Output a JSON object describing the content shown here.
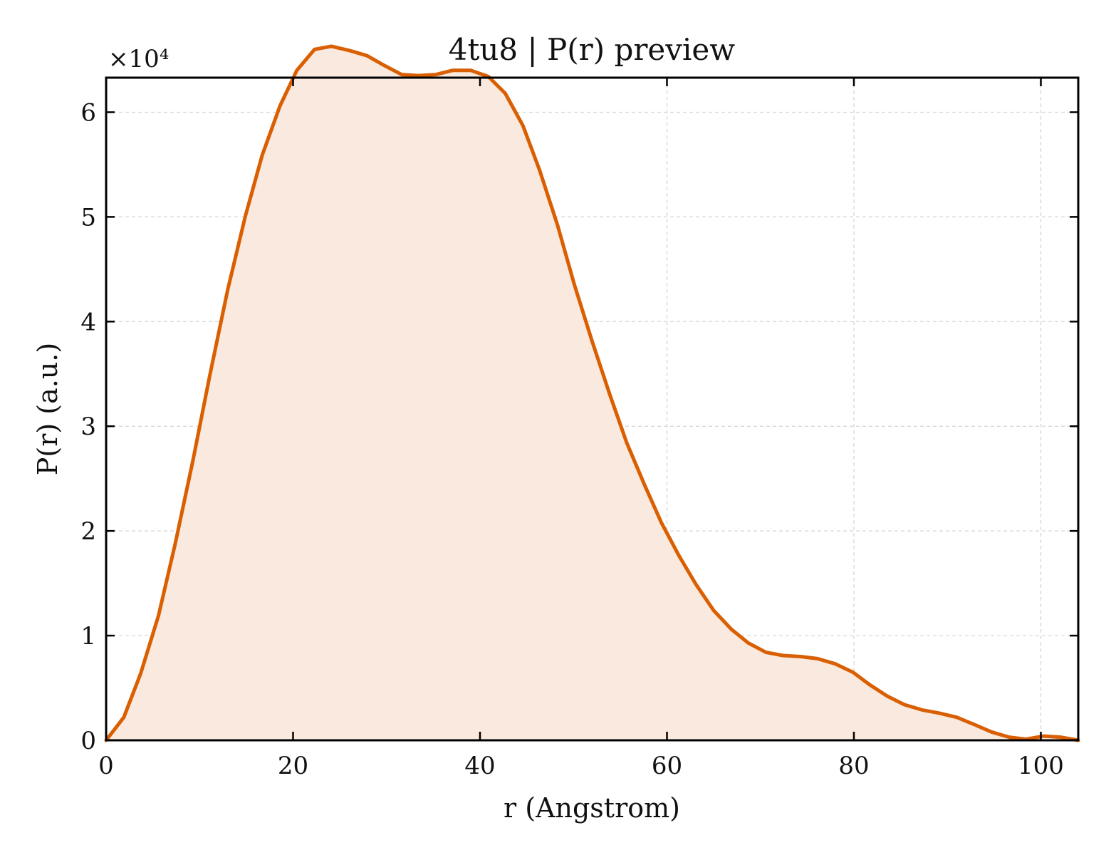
{
  "chart_data": {
    "type": "area",
    "title": "4tu8 | P(r) preview",
    "xlabel": "r (Angstrom)",
    "ylabel": "P(r) (a.u.)",
    "y_multiplier": "×10⁴",
    "xlim": [
      0,
      104
    ],
    "ylim": [
      0,
      63300
    ],
    "xticks": [
      0,
      20,
      40,
      60,
      80,
      100
    ],
    "yticks": [
      0,
      10000,
      20000,
      30000,
      40000,
      50000,
      60000
    ],
    "xtick_labels": [
      "0",
      "20",
      "40",
      "60",
      "80",
      "100"
    ],
    "ytick_labels": [
      "0",
      "1",
      "2",
      "3",
      "4",
      "5",
      "6"
    ],
    "grid": true,
    "series": [
      {
        "line_color": "#d95f02",
        "fill_color": "#fae9df",
        "x": [
          0,
          1.9,
          3.7,
          5.6,
          7.4,
          9.3,
          11.1,
          13.0,
          14.9,
          16.7,
          18.6,
          20.4,
          22.3,
          24.1,
          26.0,
          27.9,
          29.7,
          31.6,
          33.4,
          35.3,
          37.1,
          39.0,
          40.9,
          42.7,
          44.6,
          46.4,
          48.3,
          50.1,
          52.0,
          53.9,
          55.7,
          57.6,
          59.4,
          61.3,
          63.1,
          65.0,
          66.9,
          68.7,
          70.6,
          72.4,
          74.3,
          76.1,
          78.0,
          79.9,
          81.7,
          83.6,
          85.4,
          87.3,
          89.1,
          91.0,
          92.9,
          94.7,
          96.6,
          98.4,
          100.3,
          102.1,
          104.0
        ],
        "y": [
          0,
          2200,
          6400,
          11900,
          18800,
          26800,
          34900,
          43000,
          50100,
          55900,
          60600,
          64000,
          66000,
          66300,
          65900,
          65400,
          64500,
          63600,
          63500,
          63600,
          64000,
          64000,
          63400,
          61800,
          58700,
          54400,
          49200,
          43500,
          38100,
          33000,
          28400,
          24400,
          20800,
          17600,
          14900,
          12400,
          10600,
          9300,
          8400,
          8100,
          8000,
          7800,
          7300,
          6500,
          5300,
          4200,
          3400,
          2900,
          2600,
          2200,
          1500,
          800,
          300,
          100,
          400,
          300,
          0
        ]
      }
    ]
  }
}
